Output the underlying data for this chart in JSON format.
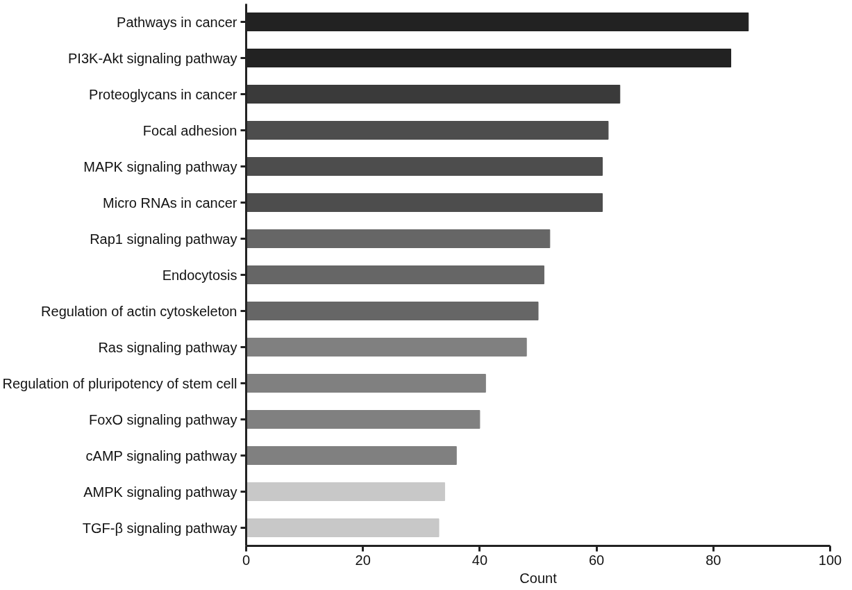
{
  "chart_data": {
    "type": "bar",
    "orientation": "horizontal",
    "xlabel": "Count",
    "categories": [
      "Pathways in cancer",
      "PI3K-Akt signaling pathway",
      "Proteoglycans in cancer",
      "Focal adhesion",
      "MAPK signaling pathway",
      "Micro RNAs in cancer",
      "Rap1 signaling pathway",
      "Endocytosis",
      "Regulation of actin cytoskeleton",
      "Ras signaling pathway",
      "Regulation of pluripotency of stem cell",
      "FoxO signaling pathway",
      "cAMP signaling pathway",
      "AMPK signaling pathway",
      "TGF-β signaling pathway"
    ],
    "values": [
      86,
      83,
      64,
      62,
      61,
      61,
      52,
      51,
      50,
      48,
      41,
      40,
      36,
      34,
      33
    ],
    "colors": [
      "#222222",
      "#222222",
      "#3a3a3a",
      "#4d4d4d",
      "#4d4d4d",
      "#4d4d4d",
      "#666666",
      "#666666",
      "#666666",
      "#808080",
      "#808080",
      "#808080",
      "#808080",
      "#c8c8c8",
      "#c8c8c8"
    ],
    "xlim": [
      0,
      100
    ],
    "xticks": [
      0,
      20,
      40,
      60,
      80,
      100
    ],
    "grid": false
  }
}
